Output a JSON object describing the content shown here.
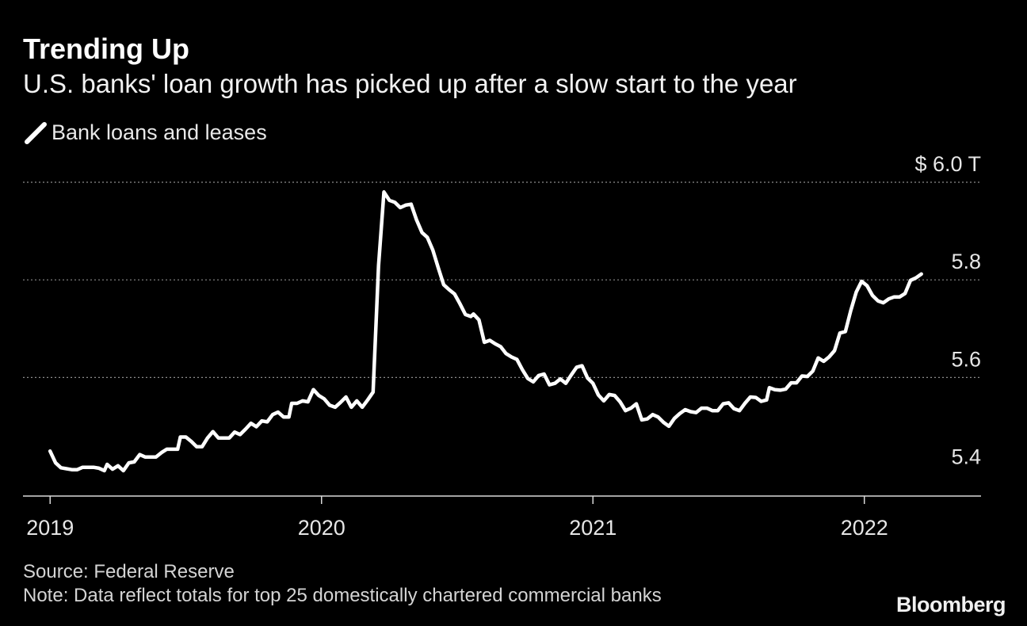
{
  "header": {
    "title": "Trending Up",
    "subtitle": "U.S. banks' loan growth has picked up after a slow start to the year"
  },
  "legend": {
    "icon": "slash-line-icon",
    "label": "Bank loans and leases"
  },
  "footer": {
    "source": "Source: Federal Reserve",
    "note": "Note: Data reflect totals for top 25 domestically chartered commercial banks",
    "brand": "Bloomberg"
  },
  "colors": {
    "background": "#000000",
    "line": "#ffffff",
    "grid": "#8c8c8c",
    "text": "#ffffff"
  },
  "chart_data": {
    "type": "line",
    "title": "Trending Up",
    "subtitle": "U.S. banks' loan growth has picked up after a slow start to the year",
    "unit": "T",
    "y_tick_labels": [
      "5.4",
      "5.6",
      "5.8",
      "$ 6.0  T"
    ],
    "y_ticks": [
      5.4,
      5.6,
      5.8,
      6.0
    ],
    "x_tick_labels": [
      "2019",
      "2020",
      "2021",
      "2022"
    ],
    "x_ticks": [
      2019,
      2020,
      2021,
      2022
    ],
    "xlim": [
      2018.9,
      2022.43
    ],
    "ylim": [
      5.357,
      6.0
    ],
    "grid": "horizontal dotted",
    "legend_position": "top-left",
    "series": [
      {
        "name": "Bank loans and leases",
        "points": [
          [
            2019.0,
            5.449
          ],
          [
            2019.02,
            5.425
          ],
          [
            2019.04,
            5.415
          ],
          [
            2019.06,
            5.413
          ],
          [
            2019.08,
            5.411
          ],
          [
            2019.1,
            5.411
          ],
          [
            2019.12,
            5.416
          ],
          [
            2019.14,
            5.416
          ],
          [
            2019.16,
            5.416
          ],
          [
            2019.18,
            5.414
          ],
          [
            2019.2,
            5.409
          ],
          [
            2019.21,
            5.422
          ],
          [
            2019.23,
            5.412
          ],
          [
            2019.25,
            5.419
          ],
          [
            2019.27,
            5.409
          ],
          [
            2019.29,
            5.425
          ],
          [
            2019.31,
            5.427
          ],
          [
            2019.33,
            5.442
          ],
          [
            2019.35,
            5.437
          ],
          [
            2019.37,
            5.437
          ],
          [
            2019.39,
            5.437
          ],
          [
            2019.41,
            5.446
          ],
          [
            2019.43,
            5.453
          ],
          [
            2019.45,
            5.453
          ],
          [
            2019.47,
            5.453
          ],
          [
            2019.48,
            5.478
          ],
          [
            2019.5,
            5.478
          ],
          [
            2019.52,
            5.469
          ],
          [
            2019.54,
            5.458
          ],
          [
            2019.56,
            5.458
          ],
          [
            2019.58,
            5.476
          ],
          [
            2019.6,
            5.489
          ],
          [
            2019.62,
            5.476
          ],
          [
            2019.64,
            5.476
          ],
          [
            2019.66,
            5.476
          ],
          [
            2019.68,
            5.488
          ],
          [
            2019.7,
            5.483
          ],
          [
            2019.72,
            5.494
          ],
          [
            2019.74,
            5.506
          ],
          [
            2019.76,
            5.499
          ],
          [
            2019.78,
            5.511
          ],
          [
            2019.8,
            5.509
          ],
          [
            2019.82,
            5.524
          ],
          [
            2019.84,
            5.529
          ],
          [
            2019.86,
            5.519
          ],
          [
            2019.88,
            5.519
          ],
          [
            2019.89,
            5.547
          ],
          [
            2019.91,
            5.547
          ],
          [
            2019.93,
            5.552
          ],
          [
            2019.95,
            5.55
          ],
          [
            2019.97,
            5.575
          ],
          [
            2019.99,
            5.563
          ],
          [
            2020.01,
            5.556
          ],
          [
            2020.03,
            5.543
          ],
          [
            2020.05,
            5.539
          ],
          [
            2020.07,
            5.549
          ],
          [
            2020.09,
            5.56
          ],
          [
            2020.11,
            5.539
          ],
          [
            2020.13,
            5.552
          ],
          [
            2020.15,
            5.539
          ],
          [
            2020.17,
            5.554
          ],
          [
            2020.19,
            5.57
          ],
          [
            2020.21,
            5.829
          ],
          [
            2020.23,
            5.98
          ],
          [
            2020.25,
            5.963
          ],
          [
            2020.27,
            5.959
          ],
          [
            2020.29,
            5.948
          ],
          [
            2020.31,
            5.953
          ],
          [
            2020.33,
            5.955
          ],
          [
            2020.35,
            5.923
          ],
          [
            2020.37,
            5.897
          ],
          [
            2020.39,
            5.887
          ],
          [
            2020.41,
            5.861
          ],
          [
            2020.43,
            5.825
          ],
          [
            2020.45,
            5.79
          ],
          [
            2020.47,
            5.78
          ],
          [
            2020.49,
            5.771
          ],
          [
            2020.51,
            5.751
          ],
          [
            2020.53,
            5.729
          ],
          [
            2020.55,
            5.725
          ],
          [
            2020.56,
            5.73
          ],
          [
            2020.58,
            5.718
          ],
          [
            2020.6,
            5.672
          ],
          [
            2020.62,
            5.676
          ],
          [
            2020.64,
            5.669
          ],
          [
            2020.66,
            5.663
          ],
          [
            2020.68,
            5.649
          ],
          [
            2020.7,
            5.642
          ],
          [
            2020.72,
            5.637
          ],
          [
            2020.74,
            5.616
          ],
          [
            2020.76,
            5.598
          ],
          [
            2020.78,
            5.591
          ],
          [
            2020.8,
            5.604
          ],
          [
            2020.82,
            5.607
          ],
          [
            2020.84,
            5.585
          ],
          [
            2020.86,
            5.588
          ],
          [
            2020.88,
            5.597
          ],
          [
            2020.9,
            5.588
          ],
          [
            2020.92,
            5.605
          ],
          [
            2020.94,
            5.621
          ],
          [
            2020.96,
            5.624
          ],
          [
            2020.98,
            5.599
          ],
          [
            2021.0,
            5.588
          ],
          [
            2021.02,
            5.564
          ],
          [
            2021.04,
            5.552
          ],
          [
            2021.06,
            5.565
          ],
          [
            2021.08,
            5.563
          ],
          [
            2021.1,
            5.55
          ],
          [
            2021.12,
            5.532
          ],
          [
            2021.14,
            5.537
          ],
          [
            2021.16,
            5.546
          ],
          [
            2021.18,
            5.513
          ],
          [
            2021.2,
            5.515
          ],
          [
            2021.22,
            5.524
          ],
          [
            2021.24,
            5.519
          ],
          [
            2021.26,
            5.508
          ],
          [
            2021.28,
            5.5
          ],
          [
            2021.3,
            5.516
          ],
          [
            2021.32,
            5.526
          ],
          [
            2021.34,
            5.534
          ],
          [
            2021.36,
            5.53
          ],
          [
            2021.38,
            5.528
          ],
          [
            2021.4,
            5.537
          ],
          [
            2021.42,
            5.537
          ],
          [
            2021.44,
            5.532
          ],
          [
            2021.46,
            5.532
          ],
          [
            2021.48,
            5.546
          ],
          [
            2021.5,
            5.548
          ],
          [
            2021.52,
            5.536
          ],
          [
            2021.54,
            5.532
          ],
          [
            2021.56,
            5.547
          ],
          [
            2021.58,
            5.56
          ],
          [
            2021.6,
            5.559
          ],
          [
            2021.62,
            5.551
          ],
          [
            2021.64,
            5.554
          ],
          [
            2021.65,
            5.579
          ],
          [
            2021.67,
            5.575
          ],
          [
            2021.69,
            5.574
          ],
          [
            2021.71,
            5.576
          ],
          [
            2021.73,
            5.589
          ],
          [
            2021.75,
            5.589
          ],
          [
            2021.77,
            5.603
          ],
          [
            2021.79,
            5.602
          ],
          [
            2021.81,
            5.613
          ],
          [
            2021.83,
            5.64
          ],
          [
            2021.85,
            5.633
          ],
          [
            2021.87,
            5.642
          ],
          [
            2021.89,
            5.655
          ],
          [
            2021.91,
            5.691
          ],
          [
            2021.93,
            5.694
          ],
          [
            2021.95,
            5.737
          ],
          [
            2021.97,
            5.775
          ],
          [
            2021.99,
            5.797
          ],
          [
            2022.01,
            5.788
          ],
          [
            2022.03,
            5.768
          ],
          [
            2022.05,
            5.757
          ],
          [
            2022.07,
            5.753
          ],
          [
            2022.09,
            5.761
          ],
          [
            2022.11,
            5.765
          ],
          [
            2022.13,
            5.765
          ],
          [
            2022.15,
            5.772
          ],
          [
            2022.17,
            5.799
          ],
          [
            2022.19,
            5.804
          ],
          [
            2022.21,
            5.812
          ]
        ]
      }
    ]
  }
}
